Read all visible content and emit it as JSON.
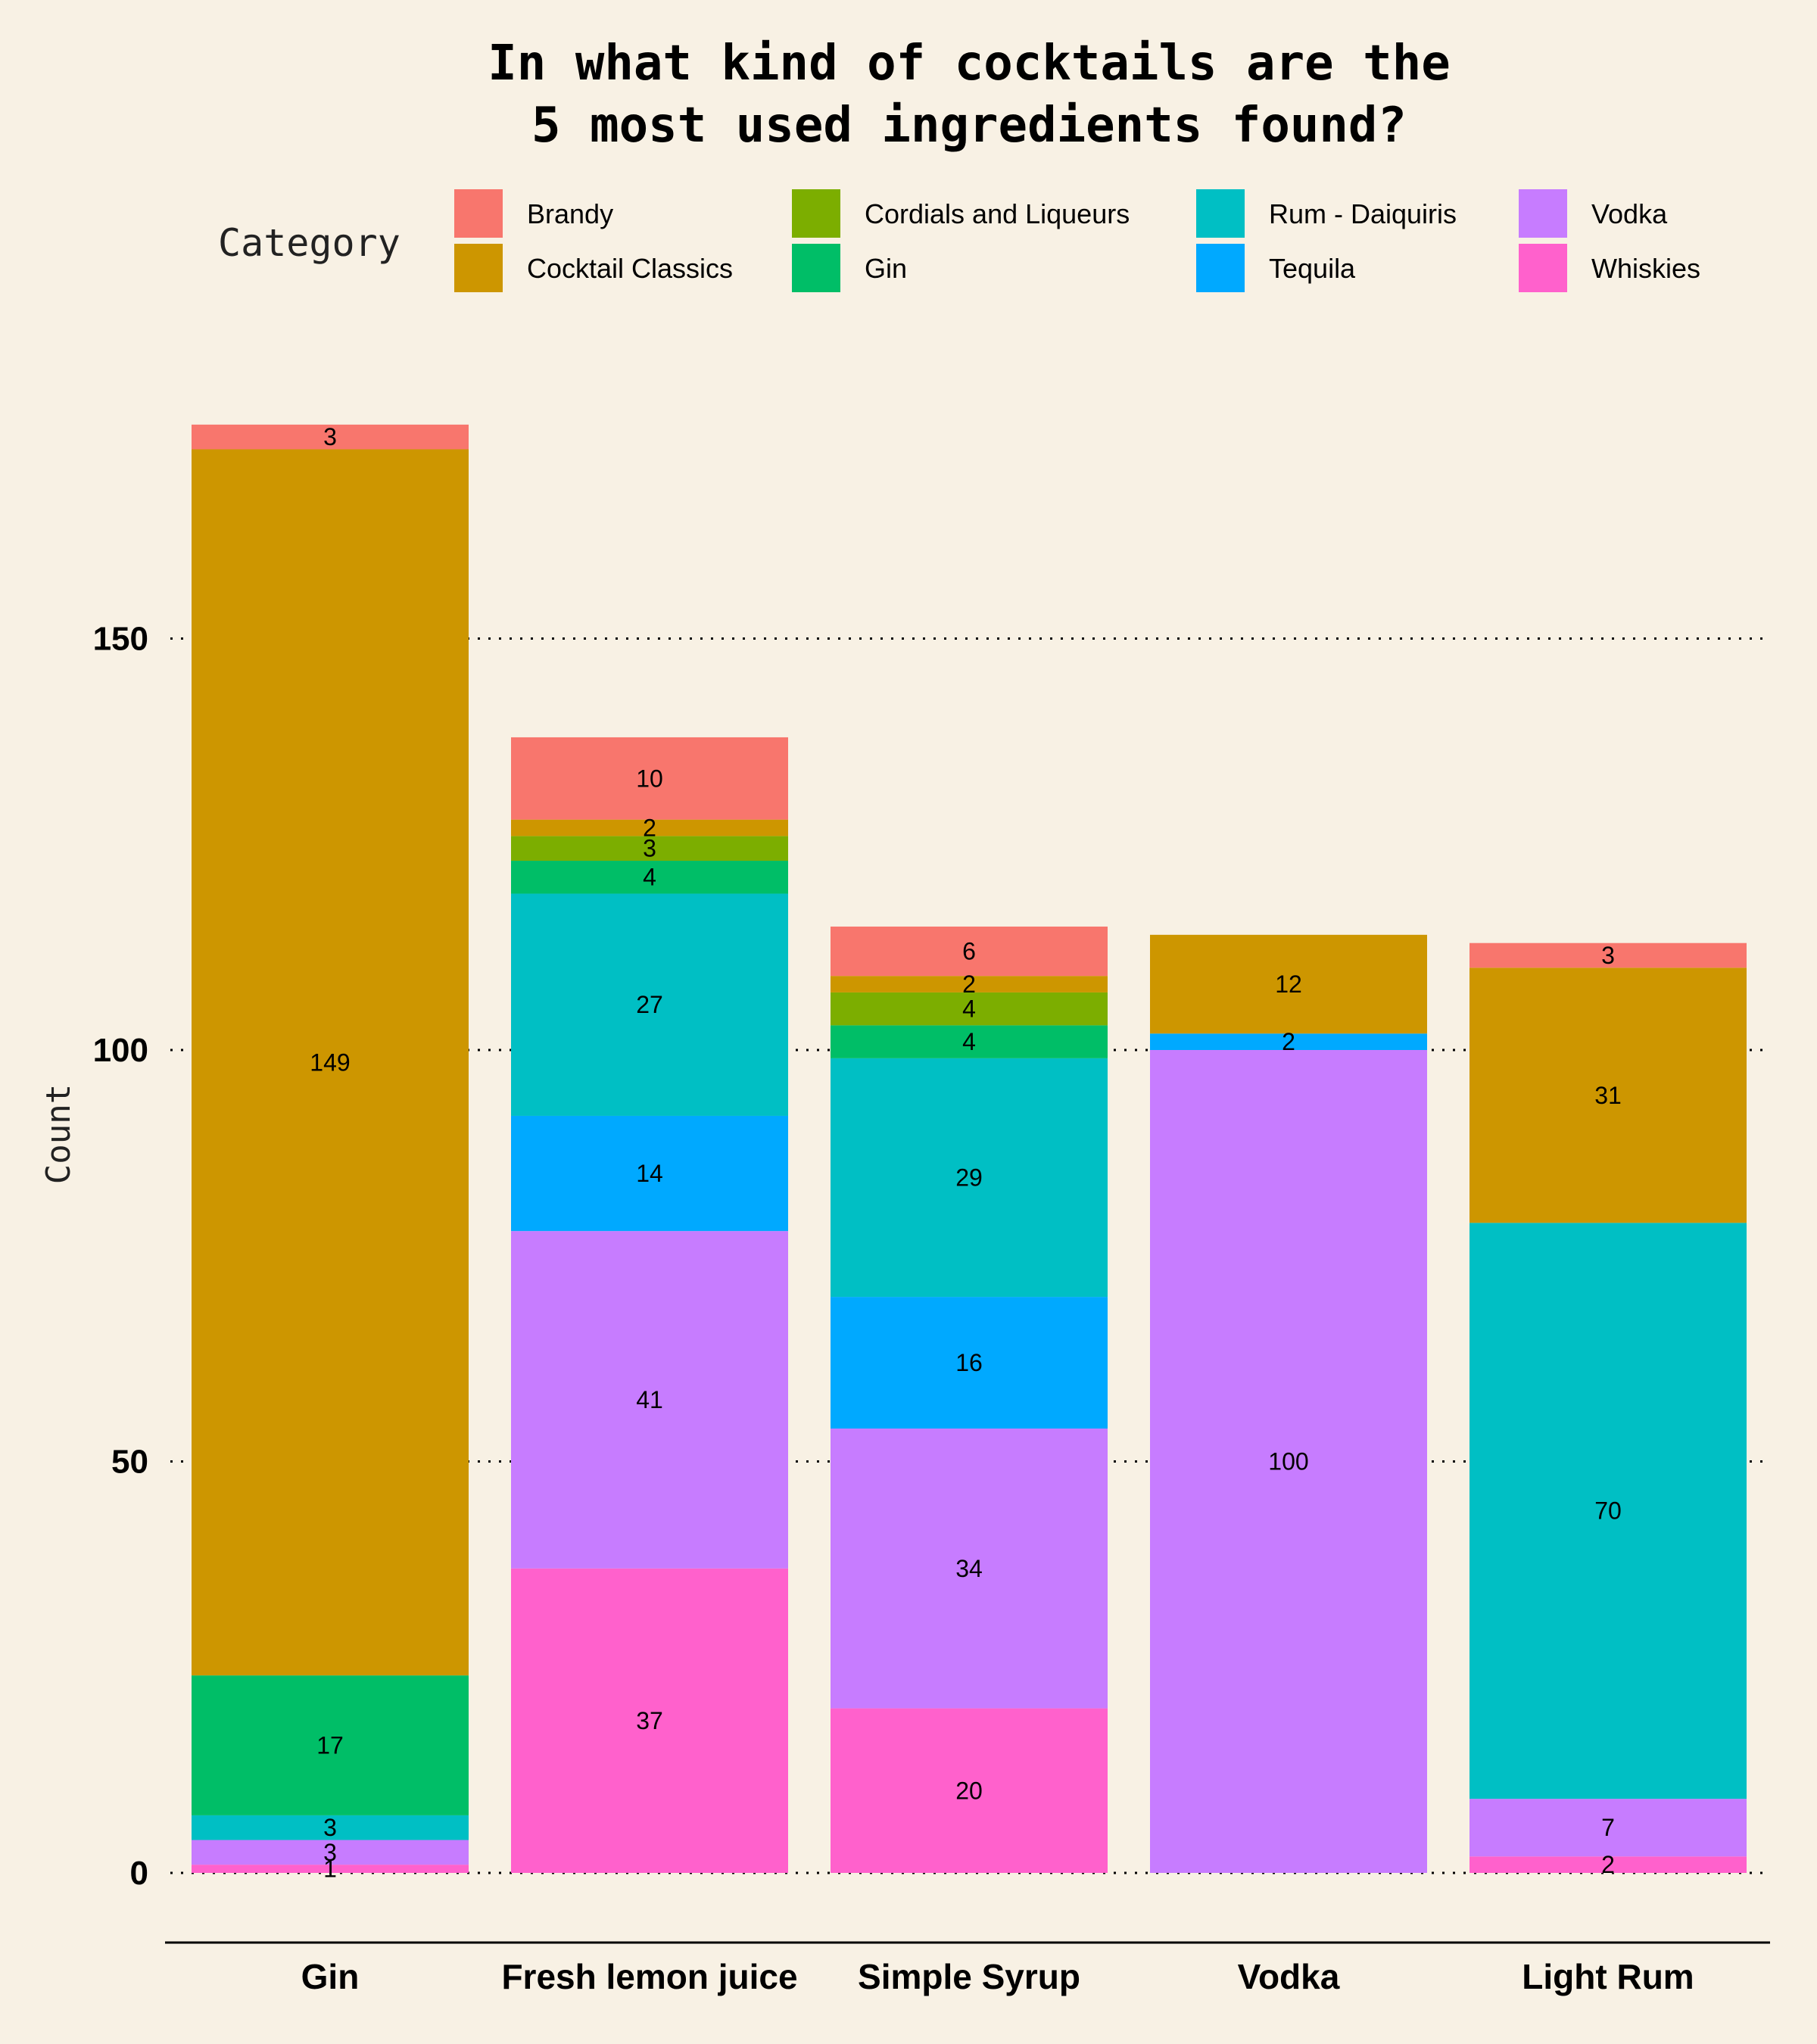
{
  "chart_data": {
    "type": "bar",
    "stacked": true,
    "title": [
      "In what kind of cocktails are the",
      "5 most used ingredients found?"
    ],
    "xlabel": "",
    "ylabel": "Count",
    "legend_title": "Category",
    "legend_position": "top",
    "ylim": [
      -8,
      182
    ],
    "yticks": [
      0,
      50,
      100,
      150
    ],
    "grid": "horizontal dotted",
    "categories": [
      "Gin",
      "Fresh lemon juice",
      "Simple Syrup",
      "Vodka",
      "Light Rum"
    ],
    "series": [
      {
        "name": "Brandy",
        "color": "#F8766D",
        "values": [
          3,
          10,
          6,
          0,
          3
        ]
      },
      {
        "name": "Cocktail Classics",
        "color": "#CD9600",
        "values": [
          149,
          2,
          2,
          12,
          31
        ]
      },
      {
        "name": "Cordials and Liqueurs",
        "color": "#7CAE00",
        "values": [
          0,
          3,
          4,
          0,
          0
        ]
      },
      {
        "name": "Gin",
        "color": "#00BE67",
        "values": [
          17,
          4,
          4,
          0,
          0
        ]
      },
      {
        "name": "Rum - Daiquiris",
        "color": "#00BFC4",
        "values": [
          3,
          27,
          29,
          0,
          70
        ]
      },
      {
        "name": "Tequila",
        "color": "#00A9FF",
        "values": [
          0,
          14,
          16,
          2,
          0
        ]
      },
      {
        "name": "Vodka",
        "color": "#C77CFF",
        "values": [
          3,
          41,
          34,
          100,
          7
        ]
      },
      {
        "name": "Whiskies",
        "color": "#FF61CC",
        "values": [
          1,
          37,
          20,
          0,
          2
        ]
      }
    ]
  }
}
